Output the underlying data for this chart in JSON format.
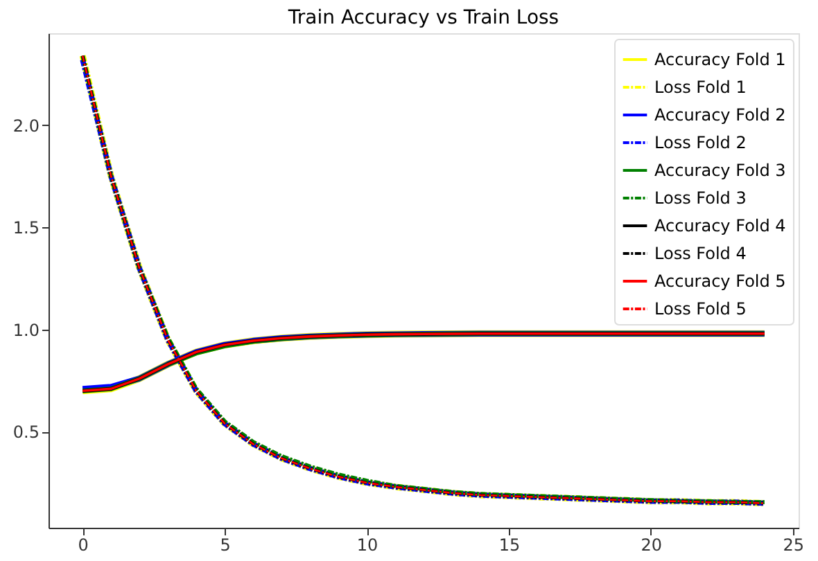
{
  "chart_data": {
    "type": "line",
    "title": "Train Accuracy vs Train Loss",
    "x": [
      0,
      1,
      2,
      3,
      4,
      5,
      6,
      7,
      8,
      9,
      10,
      11,
      12,
      13,
      14,
      15,
      16,
      17,
      18,
      19,
      20,
      21,
      22,
      23,
      24
    ],
    "xlim": [
      -1.2,
      25.2
    ],
    "xticks": [
      0,
      5,
      10,
      15,
      20,
      25
    ],
    "ylim": [
      0.03,
      2.45
    ],
    "yticks": [
      0.5,
      {
        "value": 1,
        "label": "1.0"
      },
      1.5,
      {
        "value": 2,
        "label": "2.0"
      }
    ],
    "grid": false,
    "legend": "top right",
    "marker": "none",
    "series": [
      {
        "name": "Accuracy Fold 1",
        "color": "#ffff00",
        "line_style": "solid",
        "values": [
          0.7,
          0.71,
          0.76,
          0.83,
          0.89,
          0.925,
          0.945,
          0.958,
          0.966,
          0.971,
          0.975,
          0.977,
          0.978,
          0.979,
          0.98,
          0.98,
          0.98,
          0.98,
          0.98,
          0.98,
          0.98,
          0.98,
          0.98,
          0.98,
          0.98
        ]
      },
      {
        "name": "Loss Fold 1",
        "color": "#ffff00",
        "line_style": "dashed",
        "values": [
          2.34,
          1.75,
          1.3,
          0.95,
          0.7,
          0.54,
          0.44,
          0.37,
          0.32,
          0.28,
          0.25,
          0.23,
          0.215,
          0.2,
          0.19,
          0.185,
          0.18,
          0.175,
          0.17,
          0.165,
          0.16,
          0.16,
          0.155,
          0.155,
          0.15
        ]
      },
      {
        "name": "Accuracy Fold 2",
        "color": "#0000ff",
        "line_style": "solid",
        "values": [
          0.71,
          0.72,
          0.76,
          0.83,
          0.89,
          0.925,
          0.945,
          0.958,
          0.966,
          0.971,
          0.975,
          0.977,
          0.978,
          0.979,
          0.98,
          0.98,
          0.98,
          0.98,
          0.98,
          0.98,
          0.98,
          0.98,
          0.98,
          0.98,
          0.98
        ]
      },
      {
        "name": "Loss Fold 2",
        "color": "#0000ff",
        "line_style": "dashed",
        "values": [
          2.32,
          1.75,
          1.3,
          0.95,
          0.7,
          0.54,
          0.44,
          0.37,
          0.32,
          0.28,
          0.25,
          0.23,
          0.215,
          0.2,
          0.19,
          0.185,
          0.18,
          0.175,
          0.17,
          0.165,
          0.16,
          0.16,
          0.155,
          0.155,
          0.15
        ]
      },
      {
        "name": "Accuracy Fold 3",
        "color": "#008000",
        "line_style": "solid",
        "values": [
          0.7,
          0.71,
          0.76,
          0.83,
          0.885,
          0.92,
          0.942,
          0.956,
          0.965,
          0.97,
          0.974,
          0.976,
          0.978,
          0.979,
          0.98,
          0.98,
          0.98,
          0.98,
          0.98,
          0.98,
          0.98,
          0.98,
          0.98,
          0.98,
          0.98
        ]
      },
      {
        "name": "Loss Fold 3",
        "color": "#008000",
        "line_style": "dashed",
        "values": [
          2.34,
          1.75,
          1.3,
          0.96,
          0.71,
          0.55,
          0.45,
          0.38,
          0.33,
          0.29,
          0.26,
          0.235,
          0.22,
          0.205,
          0.195,
          0.19,
          0.185,
          0.18,
          0.175,
          0.17,
          0.165,
          0.16,
          0.16,
          0.155,
          0.155
        ]
      },
      {
        "name": "Accuracy Fold 4",
        "color": "#000000",
        "line_style": "solid",
        "values": [
          0.7,
          0.71,
          0.76,
          0.83,
          0.89,
          0.925,
          0.945,
          0.958,
          0.966,
          0.971,
          0.975,
          0.977,
          0.978,
          0.979,
          0.98,
          0.98,
          0.98,
          0.98,
          0.98,
          0.98,
          0.98,
          0.98,
          0.98,
          0.98,
          0.98
        ]
      },
      {
        "name": "Loss Fold 4",
        "color": "#000000",
        "line_style": "dashed",
        "values": [
          2.34,
          1.75,
          1.3,
          0.95,
          0.7,
          0.54,
          0.44,
          0.37,
          0.32,
          0.28,
          0.25,
          0.23,
          0.215,
          0.2,
          0.19,
          0.185,
          0.18,
          0.175,
          0.17,
          0.165,
          0.16,
          0.16,
          0.155,
          0.155,
          0.15
        ]
      },
      {
        "name": "Accuracy Fold 5",
        "color": "#ff0000",
        "line_style": "solid",
        "values": [
          0.7,
          0.71,
          0.76,
          0.83,
          0.89,
          0.925,
          0.945,
          0.958,
          0.966,
          0.971,
          0.975,
          0.977,
          0.978,
          0.979,
          0.98,
          0.98,
          0.98,
          0.98,
          0.98,
          0.98,
          0.98,
          0.98,
          0.98,
          0.98,
          0.98
        ]
      },
      {
        "name": "Loss Fold 5",
        "color": "#ff0000",
        "line_style": "dashed",
        "values": [
          2.34,
          1.75,
          1.3,
          0.95,
          0.7,
          0.54,
          0.44,
          0.37,
          0.32,
          0.28,
          0.25,
          0.23,
          0.215,
          0.2,
          0.19,
          0.185,
          0.18,
          0.175,
          0.17,
          0.165,
          0.16,
          0.16,
          0.155,
          0.155,
          0.15
        ]
      }
    ]
  }
}
